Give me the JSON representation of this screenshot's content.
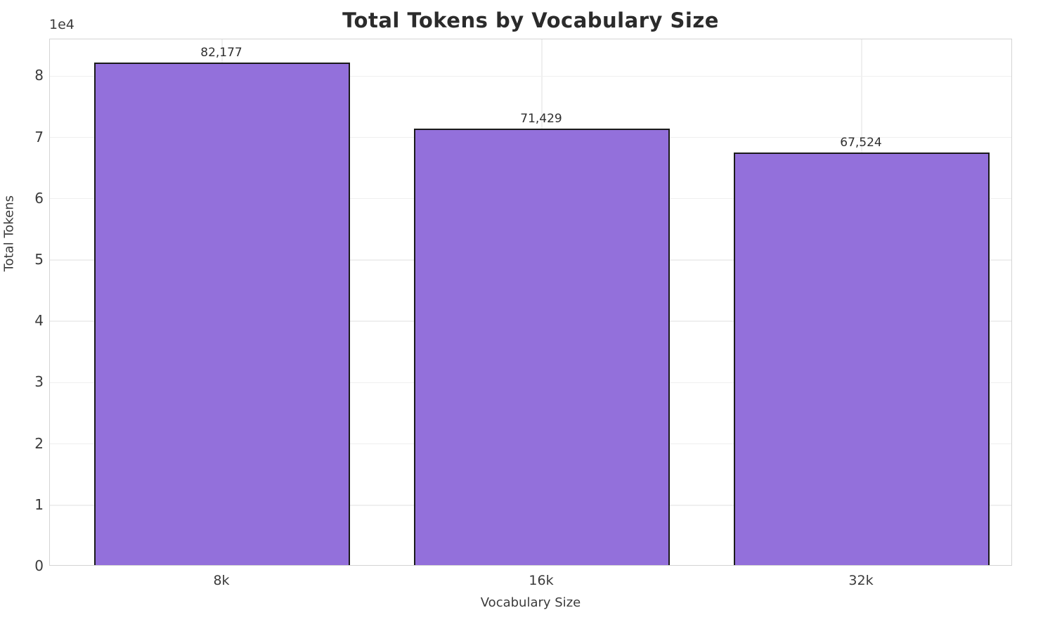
{
  "figure": {
    "title": "Total Tokens by Vocabulary Size",
    "offset_text": "1e4"
  },
  "chart_data": {
    "type": "bar",
    "title": "Total Tokens by Vocabulary Size",
    "categories": [
      "8k",
      "16k",
      "32k"
    ],
    "values": [
      82177,
      71429,
      67524
    ],
    "value_labels": [
      "82,177",
      "71,429",
      "67,524"
    ],
    "xlabel": "Vocabulary Size",
    "ylabel": "Total Tokens",
    "ylim": [
      0,
      86000
    ],
    "ytick_values": [
      0,
      10000,
      20000,
      30000,
      40000,
      50000,
      60000,
      70000,
      80000
    ],
    "ytick_labels": [
      "0",
      "1",
      "2",
      "3",
      "4",
      "5",
      "6",
      "7",
      "8"
    ],
    "y_offset_multiplier": "1e4",
    "grid": true,
    "legend_position": "none",
    "bar_color": "#9370DB",
    "bar_edge_color": "#1a1a1a"
  }
}
